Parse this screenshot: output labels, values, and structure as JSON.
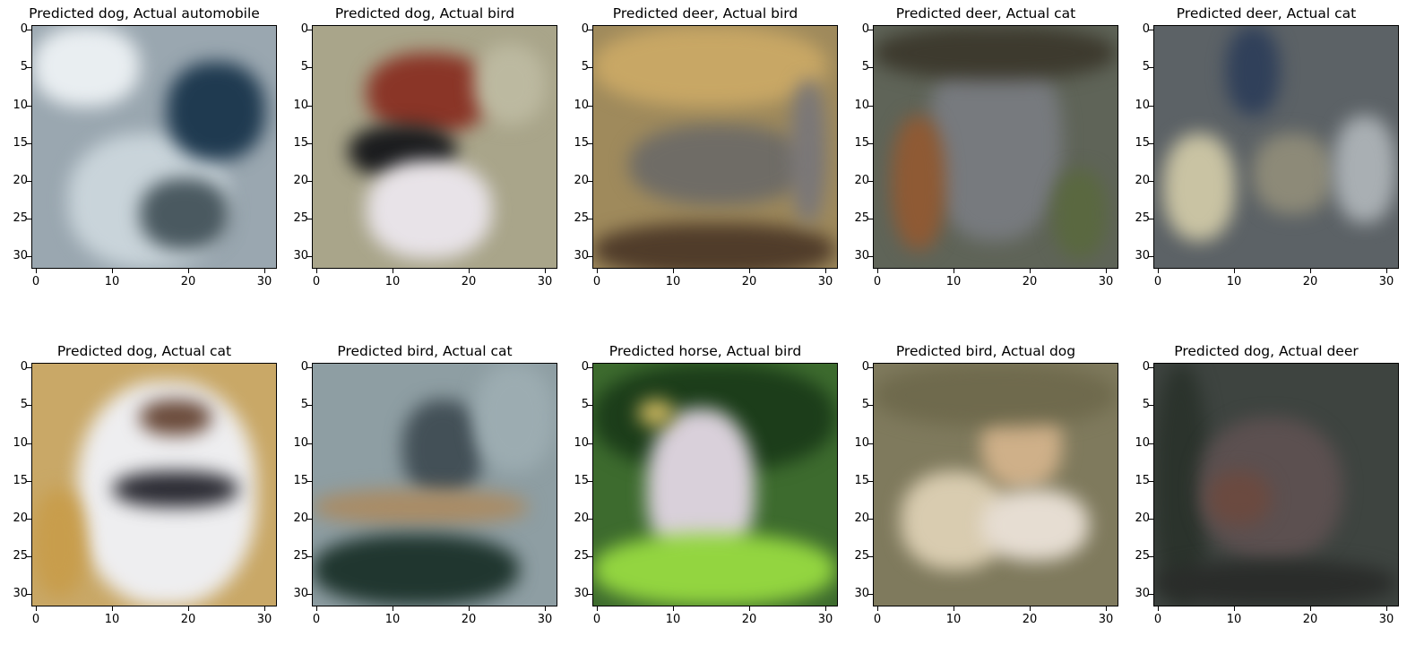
{
  "figure": {
    "panels": [
      {
        "title": "Predicted dog, Actual automobile",
        "image": "photo of a silver car",
        "bg": "#9aa7b0"
      },
      {
        "title": "Predicted dog, Actual bird",
        "image": "photo of a small bird with red cap",
        "bg": "#a9a58a"
      },
      {
        "title": "Predicted deer, Actual bird",
        "image": "photo of a grey animal in dry grass",
        "bg": "#9f8a5c"
      },
      {
        "title": "Predicted deer, Actual cat",
        "image": "photo of a grey cat on a chair",
        "bg": "#5f6458"
      },
      {
        "title": "Predicted deer, Actual cat",
        "image": "photo of an indoor scene with furniture",
        "bg": "#5c6266"
      },
      {
        "title": "Predicted dog, Actual cat",
        "image": "photo of a white cat with collar",
        "bg": "#c9a867"
      },
      {
        "title": "Predicted bird, Actual cat",
        "image": "photo of a grey cat on a shelf",
        "bg": "#8e9ea3"
      },
      {
        "title": "Predicted horse, Actual bird",
        "image": "photo of a bird perched among leaves",
        "bg": "#3d6b2e"
      },
      {
        "title": "Predicted bird, Actual dog",
        "image": "photo of two small dogs on grass",
        "bg": "#7f7a5d"
      },
      {
        "title": "Predicted dog, Actual deer",
        "image": "photo of a deer in a dark forest",
        "bg": "#3e4440"
      }
    ],
    "y_ticks": [
      "0",
      "5",
      "10",
      "15",
      "20",
      "25",
      "30"
    ],
    "x_ticks": [
      "0",
      "10",
      "20",
      "30"
    ],
    "pixel_range": [
      0,
      31
    ]
  }
}
